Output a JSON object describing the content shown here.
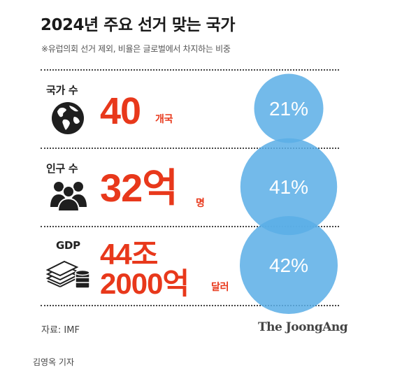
{
  "title": "2024년 주요 선거 맞는 국가",
  "subtitle": "※유럽의회 선거 제외, 비율은 글로벌에서 차지하는 비중",
  "source": "자료: IMF",
  "brand": "The JoongAng",
  "credit": "김영옥 기자",
  "colors": {
    "value": "#e8381b",
    "bubble": "#5aaee6"
  },
  "rows": [
    {
      "label": "국가 수",
      "icon": "globe-icon",
      "value_lines": [
        "40"
      ],
      "unit": "개국"
    },
    {
      "label": "인구 수",
      "icon": "people-icon",
      "value_lines": [
        "32억"
      ],
      "unit": "명"
    },
    {
      "label": "GDP",
      "icon": "money-icon",
      "value_lines": [
        "44조",
        "2000억"
      ],
      "unit": "달러"
    }
  ],
  "chart_data": {
    "type": "bubble",
    "categories": [
      "국가 수",
      "인구 수",
      "GDP"
    ],
    "values": [
      21,
      41,
      42
    ],
    "value_labels": [
      "21%",
      "41%",
      "42%"
    ]
  }
}
